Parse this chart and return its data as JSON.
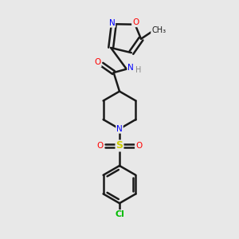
{
  "bg_color": "#e8e8e8",
  "bond_color": "#1a1a1a",
  "colors": {
    "N": "#0000ff",
    "O": "#ff0000",
    "S": "#cccc00",
    "Cl": "#00bb00",
    "C": "#1a1a1a",
    "H": "#888888"
  },
  "figsize": [
    3.0,
    3.0
  ],
  "dpi": 100
}
